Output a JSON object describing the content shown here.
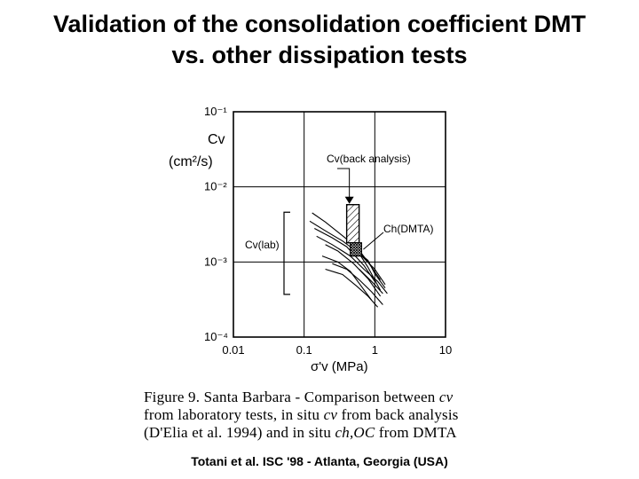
{
  "slide": {
    "title_line1": "Validation of the consolidation coefficient DMT",
    "title_line2": "vs. other dissipation tests",
    "source": "Totani et al. ISC '98 - Atlanta, Georgia (USA)"
  },
  "caption": {
    "line1_a": "Figure 9. Santa Barbara - Comparison between",
    "line1_b": "cv",
    "line2_a": "from laboratory tests, in situ",
    "line2_b": "cv",
    "line2_c": "from back analysis",
    "line3_a": "(D'Elia et al. 1994) and in situ",
    "line3_b": "ch,OC",
    "line3_c": "from DMTA"
  },
  "chart_data": {
    "type": "line",
    "xscale": "log",
    "yscale": "log",
    "xlim": [
      0.01,
      10
    ],
    "ylim": [
      0.0001,
      0.1
    ],
    "grid": true,
    "x_ticks": [
      0.01,
      0.1,
      1,
      10
    ],
    "x_tick_labels": [
      "0.01",
      "0.1",
      "1",
      "10"
    ],
    "y_ticks": [
      0.1,
      0.01,
      0.001,
      0.0001
    ],
    "y_tick_labels": [
      "10⁻¹",
      "10⁻²",
      "10⁻³",
      "10⁻⁴"
    ],
    "ylabel_line1": "Cv",
    "ylabel_line2": "(cm²/s)",
    "xlabel": "σ'v (MPa)",
    "annotations": {
      "back_analysis": "Cv(back analysis)",
      "dmta": "Ch(DMTA)",
      "lab": "Cv(lab)"
    },
    "back_analysis_box": {
      "x": [
        0.4,
        0.6
      ],
      "y": [
        0.0018,
        0.0058
      ]
    },
    "dmta_box": {
      "x": [
        0.45,
        0.65
      ],
      "y": [
        0.0012,
        0.0018
      ]
    },
    "lab_bracket": {
      "y": [
        0.00037,
        0.0046
      ]
    },
    "series": [
      {
        "x": [
          0.13,
          0.2,
          0.3,
          0.5,
          0.8,
          1.2
        ],
        "y": [
          0.0045,
          0.0034,
          0.0025,
          0.0017,
          0.00085,
          0.00042
        ]
      },
      {
        "x": [
          0.12,
          0.2,
          0.35,
          0.6,
          1.0,
          1.4
        ],
        "y": [
          0.0035,
          0.0026,
          0.0019,
          0.0013,
          0.0008,
          0.0005
        ]
      },
      {
        "x": [
          0.14,
          0.25,
          0.4,
          0.7,
          1.0
        ],
        "y": [
          0.0028,
          0.0021,
          0.0016,
          0.0009,
          0.00055
        ]
      },
      {
        "x": [
          0.15,
          0.25,
          0.45,
          0.7,
          1.1,
          1.5
        ],
        "y": [
          0.0022,
          0.0017,
          0.0012,
          0.0008,
          0.00055,
          0.00038
        ]
      },
      {
        "x": [
          0.2,
          0.3,
          0.5,
          0.8,
          1.2
        ],
        "y": [
          0.0017,
          0.0014,
          0.00095,
          0.0006,
          0.00035
        ]
      },
      {
        "x": [
          0.18,
          0.3,
          0.45,
          0.6,
          0.9
        ],
        "y": [
          0.0012,
          0.001,
          0.00075,
          0.00052,
          0.00031
        ]
      },
      {
        "x": [
          0.25,
          0.4,
          0.6,
          0.9,
          1.3
        ],
        "y": [
          0.00095,
          0.0008,
          0.00058,
          0.0004,
          0.00027
        ]
      },
      {
        "x": [
          0.2,
          0.35,
          0.55,
          0.8,
          1.1
        ],
        "y": [
          0.0008,
          0.00068,
          0.00048,
          0.00035,
          0.00025
        ]
      },
      {
        "x": [
          0.6,
          0.9,
          1.3
        ],
        "y": [
          0.0008,
          0.00055,
          0.00038
        ]
      },
      {
        "x": [
          0.5,
          0.8,
          1.2
        ],
        "y": [
          0.0018,
          0.001,
          0.00058
        ]
      },
      {
        "x": [
          0.55,
          0.8,
          1.0,
          1.4
        ],
        "y": [
          0.0014,
          0.00105,
          0.0007,
          0.00045
        ]
      }
    ]
  }
}
